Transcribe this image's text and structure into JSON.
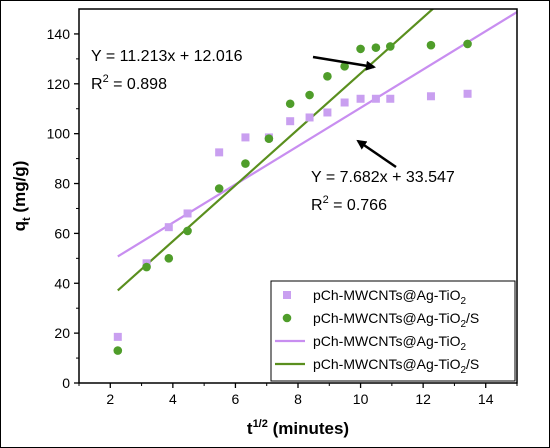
{
  "chart_data": {
    "type": "scatter",
    "xlabel_main": "t",
    "xlabel_sup": "1/2",
    "xlabel_unit": " (minutes)",
    "ylabel_main": "q",
    "ylabel_sub": "t",
    "ylabel_unit": " (mg/g)",
    "xlim": [
      1,
      15
    ],
    "ylim": [
      0,
      150
    ],
    "xticks": [
      2,
      4,
      6,
      8,
      10,
      12,
      14
    ],
    "yticks": [
      0,
      20,
      40,
      60,
      80,
      100,
      120,
      140
    ],
    "series": [
      {
        "name": "pCh-MWCNTs@Ag-TiO",
        "name_sub": "2",
        "name_tail": "",
        "kind": "points",
        "marker": "square",
        "color": "#c99ff0",
        "points": [
          [
            2.24,
            18.5
          ],
          [
            3.16,
            48
          ],
          [
            3.87,
            62.5
          ],
          [
            4.47,
            68
          ],
          [
            5.48,
            92.5
          ],
          [
            6.32,
            98.5
          ],
          [
            7.07,
            98.5
          ],
          [
            7.75,
            105
          ],
          [
            8.37,
            106.5
          ],
          [
            8.94,
            108.5
          ],
          [
            9.49,
            112.5
          ],
          [
            10.0,
            114
          ],
          [
            10.49,
            114
          ],
          [
            10.95,
            114
          ],
          [
            12.25,
            115
          ],
          [
            13.42,
            116
          ]
        ]
      },
      {
        "name": "pCh-MWCNTs@Ag-TiO",
        "name_sub": "2",
        "name_tail": "/S",
        "kind": "points",
        "marker": "circle",
        "color": "#4f9d2a",
        "points": [
          [
            2.24,
            13
          ],
          [
            3.16,
            46.5
          ],
          [
            3.87,
            50
          ],
          [
            4.47,
            61
          ],
          [
            5.48,
            78
          ],
          [
            6.32,
            88
          ],
          [
            7.07,
            98
          ],
          [
            7.75,
            112
          ],
          [
            8.37,
            115.5
          ],
          [
            8.94,
            123
          ],
          [
            9.49,
            127
          ],
          [
            10.0,
            134
          ],
          [
            10.49,
            134.5
          ],
          [
            10.95,
            135
          ],
          [
            12.25,
            135.5
          ],
          [
            13.42,
            136
          ]
        ]
      },
      {
        "name": "pCh-MWCNTs@Ag-TiO",
        "name_sub": "2",
        "name_tail": "",
        "kind": "fit",
        "color": "#c88ef0",
        "slope": 7.682,
        "intercept": 33.547,
        "x_range": [
          2.24,
          13.42
        ]
      },
      {
        "name": "pCh-MWCNTs@Ag-TiO",
        "name_sub": "2",
        "name_tail": "/S",
        "kind": "fit",
        "color": "#5a8f1e",
        "slope": 11.213,
        "intercept": 12.016,
        "x_range": [
          2.24,
          13.42
        ]
      }
    ],
    "annotations": [
      {
        "equation": "Y = 11.213x + 12.016",
        "r2_label": "R",
        "r2_sup": "2",
        "r2_value": " = 0.898"
      },
      {
        "equation": "Y = 7.682x + 33.547",
        "r2_label": "R",
        "r2_sup": "2",
        "r2_value": " = 0.766"
      }
    ],
    "legend_position": "bottom-right",
    "grid": false
  }
}
